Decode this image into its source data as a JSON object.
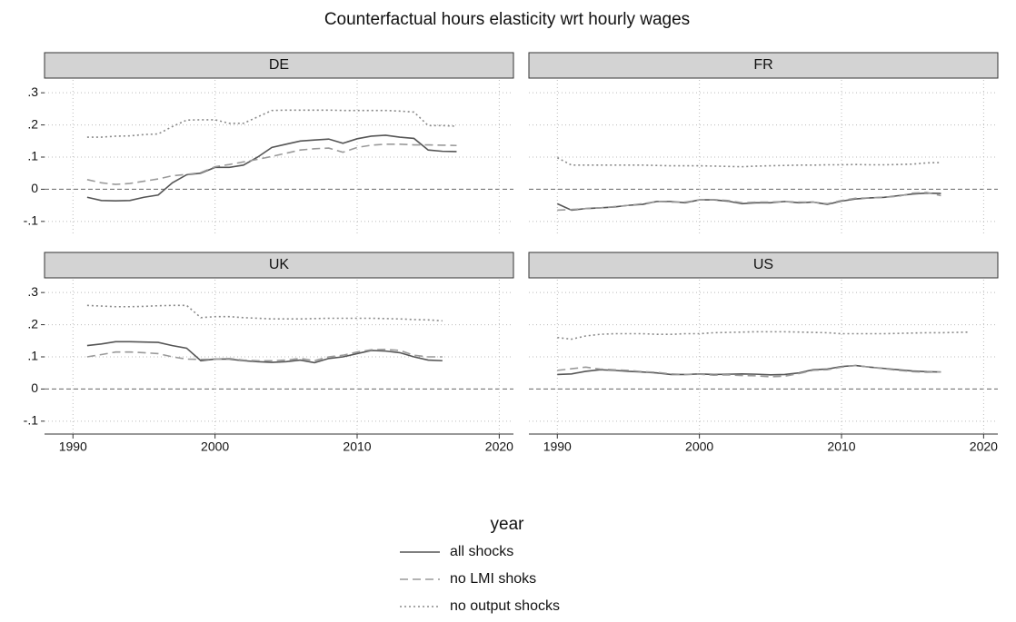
{
  "title": "Counterfactual hours elasticity wrt hourly wages",
  "x_label": "year",
  "xlim": [
    1988,
    2021
  ],
  "xticks": [
    1990,
    2000,
    2010,
    2020
  ],
  "ylim": [
    -0.14,
    0.34
  ],
  "yticks": [
    {
      "value": -0.1,
      "label": "-.1"
    },
    0,
    {
      "value": 0.1,
      "label": ".1"
    },
    {
      "value": 0.2,
      "label": ".2"
    },
    {
      "value": 0.3,
      "label": ".3"
    }
  ],
  "grid": true,
  "zero_line": true,
  "legend": [
    {
      "name": "all shocks",
      "color": "#555555",
      "dash": "solid"
    },
    {
      "name": "no LMI shoks",
      "color": "#9a9a9a",
      "dash": "dashed"
    },
    {
      "name": "no output shocks",
      "color": "#8a8a8a",
      "dash": "dotted"
    }
  ],
  "chart_data": [
    {
      "type": "line",
      "title": "DE",
      "x": [
        1991,
        1992,
        1993,
        1994,
        1995,
        1996,
        1997,
        1998,
        1999,
        2000,
        2001,
        2002,
        2003,
        2004,
        2005,
        2006,
        2007,
        2008,
        2009,
        2010,
        2011,
        2012,
        2013,
        2014,
        2015,
        2016,
        2017
      ],
      "series": [
        {
          "values": [
            -0.025,
            -0.035,
            -0.036,
            -0.035,
            -0.025,
            -0.018,
            0.02,
            0.045,
            0.05,
            0.068,
            0.068,
            0.075,
            0.1,
            0.13,
            0.14,
            0.15,
            0.153,
            0.156,
            0.143,
            0.157,
            0.165,
            0.168,
            0.162,
            0.158,
            0.122,
            0.118,
            0.117
          ]
        },
        {
          "values": [
            0.03,
            0.02,
            0.015,
            0.018,
            0.025,
            0.032,
            0.042,
            0.046,
            0.052,
            0.07,
            0.077,
            0.085,
            0.093,
            0.102,
            0.112,
            0.122,
            0.126,
            0.128,
            0.115,
            0.13,
            0.137,
            0.14,
            0.14,
            0.138,
            0.138,
            0.137,
            0.136
          ]
        },
        {
          "values": [
            0.162,
            0.162,
            0.165,
            0.166,
            0.17,
            0.172,
            0.195,
            0.215,
            0.216,
            0.216,
            0.205,
            0.205,
            0.225,
            0.245,
            0.246,
            0.246,
            0.246,
            0.246,
            0.245,
            0.245,
            0.245,
            0.245,
            0.243,
            0.24,
            0.198,
            0.198,
            0.196
          ]
        }
      ]
    },
    {
      "type": "line",
      "title": "FR",
      "x": [
        1990,
        1991,
        1992,
        1993,
        1994,
        1995,
        1996,
        1997,
        1998,
        1999,
        2000,
        2001,
        2002,
        2003,
        2004,
        2005,
        2006,
        2007,
        2008,
        2009,
        2010,
        2011,
        2012,
        2013,
        2014,
        2015,
        2016,
        2017
      ],
      "series": [
        {
          "values": [
            -0.045,
            -0.065,
            -0.06,
            -0.058,
            -0.055,
            -0.05,
            -0.047,
            -0.038,
            -0.038,
            -0.042,
            -0.033,
            -0.033,
            -0.037,
            -0.045,
            -0.042,
            -0.042,
            -0.038,
            -0.042,
            -0.04,
            -0.047,
            -0.037,
            -0.03,
            -0.027,
            -0.025,
            -0.02,
            -0.015,
            -0.012,
            -0.013
          ]
        },
        {
          "values": [
            -0.065,
            -0.063,
            -0.06,
            -0.058,
            -0.054,
            -0.05,
            -0.045,
            -0.038,
            -0.04,
            -0.04,
            -0.033,
            -0.032,
            -0.035,
            -0.042,
            -0.04,
            -0.04,
            -0.038,
            -0.04,
            -0.04,
            -0.045,
            -0.035,
            -0.028,
            -0.027,
            -0.025,
            -0.022,
            -0.012,
            -0.01,
            -0.02
          ]
        },
        {
          "values": [
            0.098,
            0.075,
            0.075,
            0.075,
            0.075,
            0.075,
            0.075,
            0.074,
            0.073,
            0.073,
            0.073,
            0.072,
            0.071,
            0.07,
            0.072,
            0.073,
            0.074,
            0.075,
            0.075,
            0.076,
            0.076,
            0.077,
            0.076,
            0.076,
            0.077,
            0.078,
            0.082,
            0.083
          ]
        }
      ]
    },
    {
      "type": "line",
      "title": "UK",
      "x": [
        1991,
        1992,
        1993,
        1994,
        1995,
        1996,
        1997,
        1998,
        1999,
        2000,
        2001,
        2002,
        2003,
        2004,
        2005,
        2006,
        2007,
        2008,
        2009,
        2010,
        2011,
        2012,
        2013,
        2014,
        2015,
        2016
      ],
      "series": [
        {
          "values": [
            0.135,
            0.14,
            0.147,
            0.147,
            0.146,
            0.145,
            0.135,
            0.127,
            0.088,
            0.093,
            0.093,
            0.088,
            0.085,
            0.083,
            0.085,
            0.09,
            0.082,
            0.095,
            0.1,
            0.11,
            0.12,
            0.118,
            0.113,
            0.1,
            0.09,
            0.088
          ]
        },
        {
          "values": [
            0.1,
            0.107,
            0.115,
            0.115,
            0.113,
            0.11,
            0.1,
            0.093,
            0.092,
            0.093,
            0.095,
            0.09,
            0.088,
            0.088,
            0.09,
            0.095,
            0.088,
            0.1,
            0.105,
            0.115,
            0.122,
            0.123,
            0.12,
            0.105,
            0.1,
            0.1
          ]
        },
        {
          "values": [
            0.26,
            0.258,
            0.256,
            0.256,
            0.257,
            0.259,
            0.26,
            0.26,
            0.222,
            0.225,
            0.225,
            0.222,
            0.22,
            0.218,
            0.218,
            0.218,
            0.219,
            0.22,
            0.22,
            0.22,
            0.22,
            0.219,
            0.218,
            0.216,
            0.215,
            0.212
          ]
        }
      ]
    },
    {
      "type": "line",
      "title": "US",
      "x": [
        1990,
        1991,
        1992,
        1993,
        1994,
        1995,
        1996,
        1997,
        1998,
        1999,
        2000,
        2001,
        2002,
        2003,
        2004,
        2005,
        2006,
        2007,
        2008,
        2009,
        2010,
        2011,
        2012,
        2013,
        2014,
        2015,
        2016,
        2017,
        2018,
        2019
      ],
      "series": [
        {
          "values": [
            0.045,
            0.047,
            0.055,
            0.06,
            0.058,
            0.055,
            0.053,
            0.05,
            0.045,
            0.045,
            0.047,
            0.045,
            0.046,
            0.047,
            0.046,
            0.044,
            0.045,
            0.05,
            0.06,
            0.062,
            0.07,
            0.073,
            0.068,
            0.064,
            0.06,
            0.056,
            0.054,
            0.053,
            null,
            null
          ]
        },
        {
          "values": [
            0.058,
            0.063,
            0.068,
            0.062,
            0.06,
            0.058,
            0.054,
            0.052,
            0.047,
            0.045,
            0.046,
            0.043,
            0.044,
            0.042,
            0.041,
            0.038,
            0.04,
            0.048,
            0.058,
            0.06,
            0.068,
            0.073,
            0.068,
            0.063,
            0.058,
            0.054,
            0.052,
            0.053,
            null,
            null
          ]
        },
        {
          "values": [
            0.16,
            0.155,
            0.165,
            0.17,
            0.172,
            0.172,
            0.172,
            0.17,
            0.17,
            0.172,
            0.172,
            0.175,
            0.176,
            0.177,
            0.178,
            0.178,
            0.178,
            0.177,
            0.176,
            0.175,
            0.172,
            0.172,
            0.172,
            0.172,
            0.173,
            0.174,
            0.175,
            0.175,
            0.176,
            0.177
          ]
        }
      ]
    }
  ]
}
